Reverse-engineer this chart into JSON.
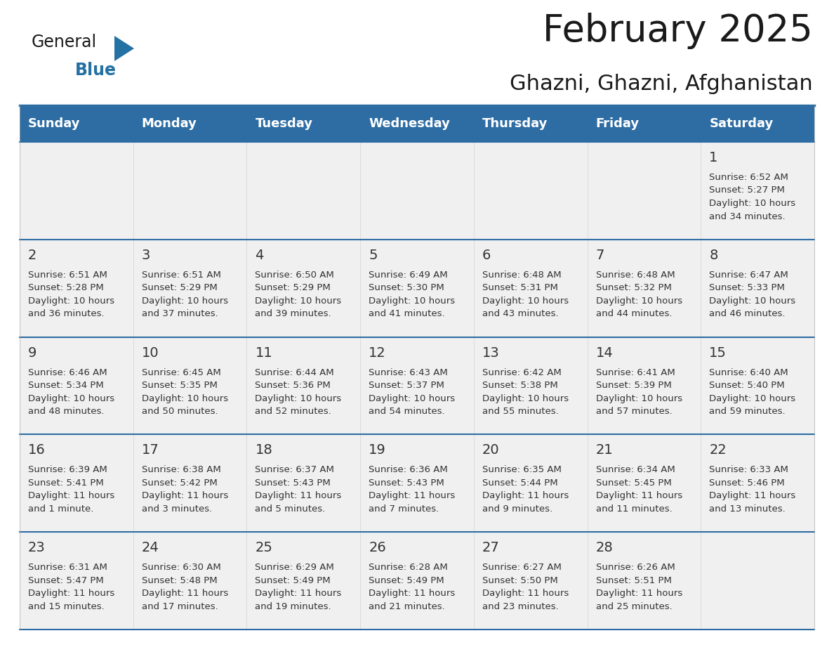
{
  "title": "February 2025",
  "subtitle": "Ghazni, Ghazni, Afghanistan",
  "header_bg": "#2E6DA4",
  "header_text_color": "#FFFFFF",
  "cell_bg": "#F0F0F0",
  "day_number_color": "#333333",
  "info_text_color": "#333333",
  "border_color": "#2E6DA4",
  "separator_color": "#2E6DA4",
  "days_of_week": [
    "Sunday",
    "Monday",
    "Tuesday",
    "Wednesday",
    "Thursday",
    "Friday",
    "Saturday"
  ],
  "weeks": [
    [
      {
        "day": null,
        "info": null
      },
      {
        "day": null,
        "info": null
      },
      {
        "day": null,
        "info": null
      },
      {
        "day": null,
        "info": null
      },
      {
        "day": null,
        "info": null
      },
      {
        "day": null,
        "info": null
      },
      {
        "day": 1,
        "info": "Sunrise: 6:52 AM\nSunset: 5:27 PM\nDaylight: 10 hours\nand 34 minutes."
      }
    ],
    [
      {
        "day": 2,
        "info": "Sunrise: 6:51 AM\nSunset: 5:28 PM\nDaylight: 10 hours\nand 36 minutes."
      },
      {
        "day": 3,
        "info": "Sunrise: 6:51 AM\nSunset: 5:29 PM\nDaylight: 10 hours\nand 37 minutes."
      },
      {
        "day": 4,
        "info": "Sunrise: 6:50 AM\nSunset: 5:29 PM\nDaylight: 10 hours\nand 39 minutes."
      },
      {
        "day": 5,
        "info": "Sunrise: 6:49 AM\nSunset: 5:30 PM\nDaylight: 10 hours\nand 41 minutes."
      },
      {
        "day": 6,
        "info": "Sunrise: 6:48 AM\nSunset: 5:31 PM\nDaylight: 10 hours\nand 43 minutes."
      },
      {
        "day": 7,
        "info": "Sunrise: 6:48 AM\nSunset: 5:32 PM\nDaylight: 10 hours\nand 44 minutes."
      },
      {
        "day": 8,
        "info": "Sunrise: 6:47 AM\nSunset: 5:33 PM\nDaylight: 10 hours\nand 46 minutes."
      }
    ],
    [
      {
        "day": 9,
        "info": "Sunrise: 6:46 AM\nSunset: 5:34 PM\nDaylight: 10 hours\nand 48 minutes."
      },
      {
        "day": 10,
        "info": "Sunrise: 6:45 AM\nSunset: 5:35 PM\nDaylight: 10 hours\nand 50 minutes."
      },
      {
        "day": 11,
        "info": "Sunrise: 6:44 AM\nSunset: 5:36 PM\nDaylight: 10 hours\nand 52 minutes."
      },
      {
        "day": 12,
        "info": "Sunrise: 6:43 AM\nSunset: 5:37 PM\nDaylight: 10 hours\nand 54 minutes."
      },
      {
        "day": 13,
        "info": "Sunrise: 6:42 AM\nSunset: 5:38 PM\nDaylight: 10 hours\nand 55 minutes."
      },
      {
        "day": 14,
        "info": "Sunrise: 6:41 AM\nSunset: 5:39 PM\nDaylight: 10 hours\nand 57 minutes."
      },
      {
        "day": 15,
        "info": "Sunrise: 6:40 AM\nSunset: 5:40 PM\nDaylight: 10 hours\nand 59 minutes."
      }
    ],
    [
      {
        "day": 16,
        "info": "Sunrise: 6:39 AM\nSunset: 5:41 PM\nDaylight: 11 hours\nand 1 minute."
      },
      {
        "day": 17,
        "info": "Sunrise: 6:38 AM\nSunset: 5:42 PM\nDaylight: 11 hours\nand 3 minutes."
      },
      {
        "day": 18,
        "info": "Sunrise: 6:37 AM\nSunset: 5:43 PM\nDaylight: 11 hours\nand 5 minutes."
      },
      {
        "day": 19,
        "info": "Sunrise: 6:36 AM\nSunset: 5:43 PM\nDaylight: 11 hours\nand 7 minutes."
      },
      {
        "day": 20,
        "info": "Sunrise: 6:35 AM\nSunset: 5:44 PM\nDaylight: 11 hours\nand 9 minutes."
      },
      {
        "day": 21,
        "info": "Sunrise: 6:34 AM\nSunset: 5:45 PM\nDaylight: 11 hours\nand 11 minutes."
      },
      {
        "day": 22,
        "info": "Sunrise: 6:33 AM\nSunset: 5:46 PM\nDaylight: 11 hours\nand 13 minutes."
      }
    ],
    [
      {
        "day": 23,
        "info": "Sunrise: 6:31 AM\nSunset: 5:47 PM\nDaylight: 11 hours\nand 15 minutes."
      },
      {
        "day": 24,
        "info": "Sunrise: 6:30 AM\nSunset: 5:48 PM\nDaylight: 11 hours\nand 17 minutes."
      },
      {
        "day": 25,
        "info": "Sunrise: 6:29 AM\nSunset: 5:49 PM\nDaylight: 11 hours\nand 19 minutes."
      },
      {
        "day": 26,
        "info": "Sunrise: 6:28 AM\nSunset: 5:49 PM\nDaylight: 11 hours\nand 21 minutes."
      },
      {
        "day": 27,
        "info": "Sunrise: 6:27 AM\nSunset: 5:50 PM\nDaylight: 11 hours\nand 23 minutes."
      },
      {
        "day": 28,
        "info": "Sunrise: 6:26 AM\nSunset: 5:51 PM\nDaylight: 11 hours\nand 25 minutes."
      },
      {
        "day": null,
        "info": null
      }
    ]
  ],
  "logo_color_general": "#1a1a1a",
  "logo_color_blue": "#2471A3",
  "logo_triangle_color": "#2471A3",
  "fig_width": 11.88,
  "fig_height": 9.18,
  "dpi": 100
}
